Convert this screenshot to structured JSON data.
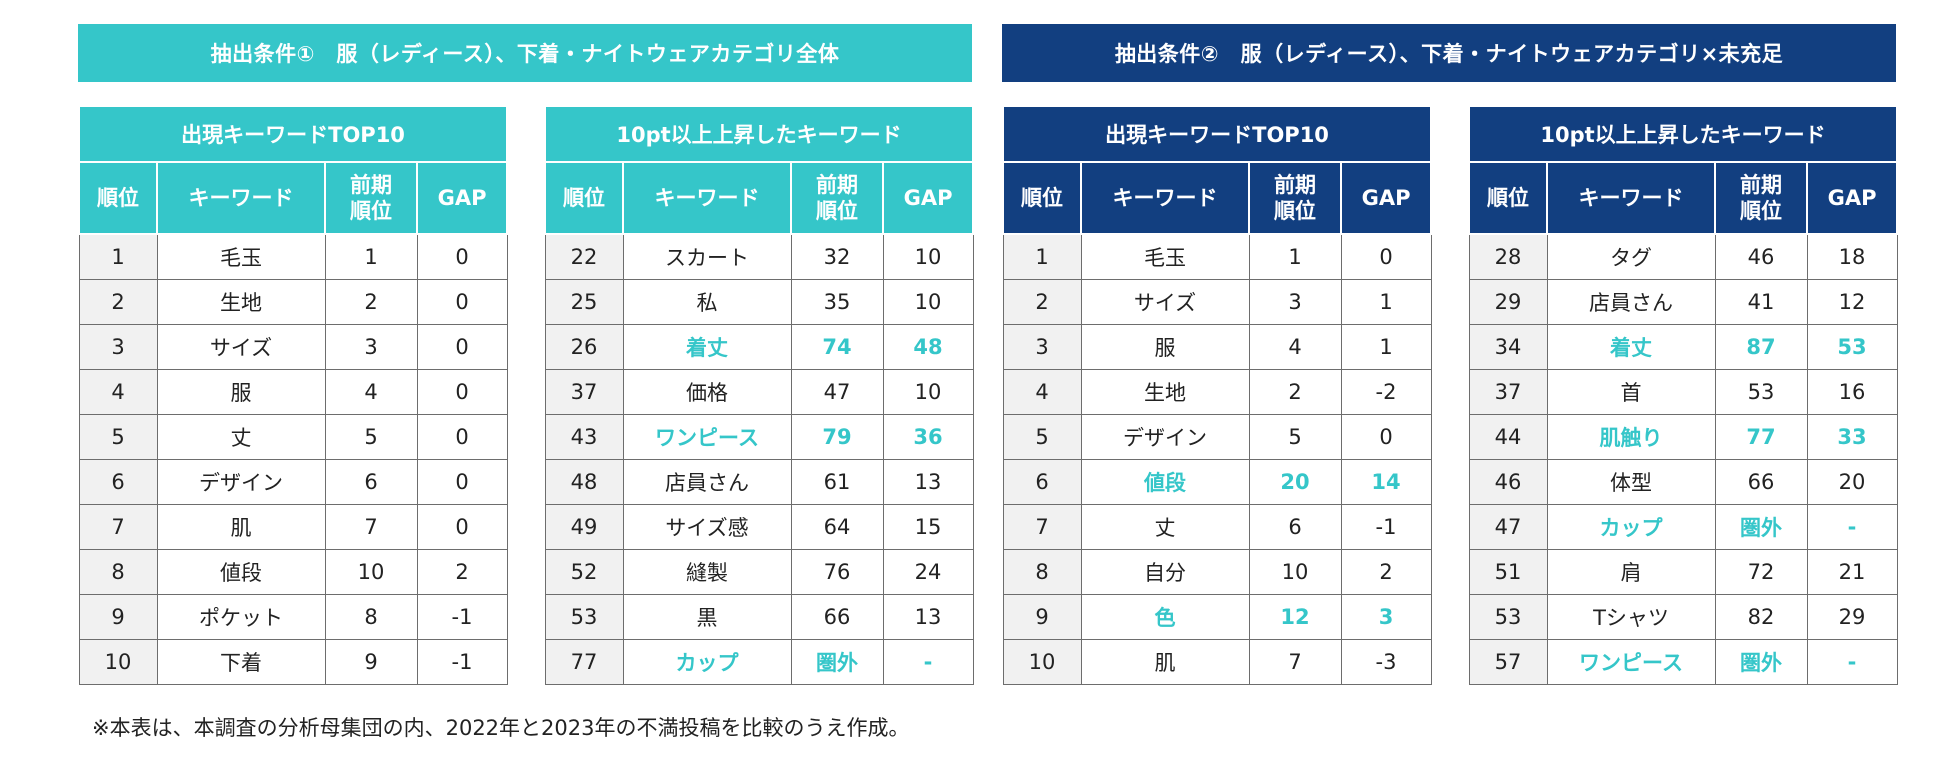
{
  "banners": {
    "left": "抽出条件①　服（レディース）、下着・ナイトウェアカテゴリ全体",
    "right": "抽出条件②　服（レディース）、下着・ナイトウェアカテゴリ×未充足"
  },
  "headers": {
    "rank": "順位",
    "keyword": "キーワード",
    "prev_line1": "前期",
    "prev_line2": "順位",
    "gap": "GAP"
  },
  "tables": [
    {
      "title": "出現キーワードTOP10",
      "rows": [
        {
          "rank": "1",
          "keyword": "毛玉",
          "prev": "1",
          "gap": "0",
          "highlight": false
        },
        {
          "rank": "2",
          "keyword": "生地",
          "prev": "2",
          "gap": "0",
          "highlight": false
        },
        {
          "rank": "3",
          "keyword": "サイズ",
          "prev": "3",
          "gap": "0",
          "highlight": false
        },
        {
          "rank": "4",
          "keyword": "服",
          "prev": "4",
          "gap": "0",
          "highlight": false
        },
        {
          "rank": "5",
          "keyword": "丈",
          "prev": "5",
          "gap": "0",
          "highlight": false
        },
        {
          "rank": "6",
          "keyword": "デザイン",
          "prev": "6",
          "gap": "0",
          "highlight": false
        },
        {
          "rank": "7",
          "keyword": "肌",
          "prev": "7",
          "gap": "0",
          "highlight": false
        },
        {
          "rank": "8",
          "keyword": "値段",
          "prev": "10",
          "gap": "2",
          "highlight": false
        },
        {
          "rank": "9",
          "keyword": "ポケット",
          "prev": "8",
          "gap": "-1",
          "highlight": false
        },
        {
          "rank": "10",
          "keyword": "下着",
          "prev": "9",
          "gap": "-1",
          "highlight": false
        }
      ]
    },
    {
      "title": "10pt以上上昇したキーワード",
      "rows": [
        {
          "rank": "22",
          "keyword": "スカート",
          "prev": "32",
          "gap": "10",
          "highlight": false
        },
        {
          "rank": "25",
          "keyword": "私",
          "prev": "35",
          "gap": "10",
          "highlight": false
        },
        {
          "rank": "26",
          "keyword": "着丈",
          "prev": "74",
          "gap": "48",
          "highlight": true
        },
        {
          "rank": "37",
          "keyword": "価格",
          "prev": "47",
          "gap": "10",
          "highlight": false
        },
        {
          "rank": "43",
          "keyword": "ワンピース",
          "prev": "79",
          "gap": "36",
          "highlight": true
        },
        {
          "rank": "48",
          "keyword": "店員さん",
          "prev": "61",
          "gap": "13",
          "highlight": false
        },
        {
          "rank": "49",
          "keyword": "サイズ感",
          "prev": "64",
          "gap": "15",
          "highlight": false
        },
        {
          "rank": "52",
          "keyword": "縫製",
          "prev": "76",
          "gap": "24",
          "highlight": false
        },
        {
          "rank": "53",
          "keyword": "黒",
          "prev": "66",
          "gap": "13",
          "highlight": false
        },
        {
          "rank": "77",
          "keyword": "カップ",
          "prev": "圏外",
          "gap": "-",
          "highlight": true
        }
      ]
    },
    {
      "title": "出現キーワードTOP10",
      "rows": [
        {
          "rank": "1",
          "keyword": "毛玉",
          "prev": "1",
          "gap": "0",
          "highlight": false
        },
        {
          "rank": "2",
          "keyword": "サイズ",
          "prev": "3",
          "gap": "1",
          "highlight": false
        },
        {
          "rank": "3",
          "keyword": "服",
          "prev": "4",
          "gap": "1",
          "highlight": false
        },
        {
          "rank": "4",
          "keyword": "生地",
          "prev": "2",
          "gap": "-2",
          "highlight": false
        },
        {
          "rank": "5",
          "keyword": "デザイン",
          "prev": "5",
          "gap": "0",
          "highlight": false
        },
        {
          "rank": "6",
          "keyword": "値段",
          "prev": "20",
          "gap": "14",
          "highlight": true
        },
        {
          "rank": "7",
          "keyword": "丈",
          "prev": "6",
          "gap": "-1",
          "highlight": false
        },
        {
          "rank": "8",
          "keyword": "自分",
          "prev": "10",
          "gap": "2",
          "highlight": false
        },
        {
          "rank": "9",
          "keyword": "色",
          "prev": "12",
          "gap": "3",
          "highlight": true
        },
        {
          "rank": "10",
          "keyword": "肌",
          "prev": "7",
          "gap": "-3",
          "highlight": false
        }
      ]
    },
    {
      "title": "10pt以上上昇したキーワード",
      "rows": [
        {
          "rank": "28",
          "keyword": "タグ",
          "prev": "46",
          "gap": "18",
          "highlight": false
        },
        {
          "rank": "29",
          "keyword": "店員さん",
          "prev": "41",
          "gap": "12",
          "highlight": false
        },
        {
          "rank": "34",
          "keyword": "着丈",
          "prev": "87",
          "gap": "53",
          "highlight": true
        },
        {
          "rank": "37",
          "keyword": "首",
          "prev": "53",
          "gap": "16",
          "highlight": false
        },
        {
          "rank": "44",
          "keyword": "肌触り",
          "prev": "77",
          "gap": "33",
          "highlight": true
        },
        {
          "rank": "46",
          "keyword": "体型",
          "prev": "66",
          "gap": "20",
          "highlight": false
        },
        {
          "rank": "47",
          "keyword": "カップ",
          "prev": "圏外",
          "gap": "-",
          "highlight": true
        },
        {
          "rank": "51",
          "keyword": "肩",
          "prev": "72",
          "gap": "21",
          "highlight": false
        },
        {
          "rank": "53",
          "keyword": "Tシャツ",
          "prev": "82",
          "gap": "29",
          "highlight": false
        },
        {
          "rank": "57",
          "keyword": "ワンピース",
          "prev": "圏外",
          "gap": "-",
          "highlight": true
        }
      ]
    }
  ],
  "note": "※本表は、本調査の分析母集団の内、2022年と2023年の不満投稿を比較のうえ作成。",
  "colors": {
    "teal": "#35c6c9",
    "navy": "#123f80",
    "highlight_text": "#35c6c9"
  }
}
